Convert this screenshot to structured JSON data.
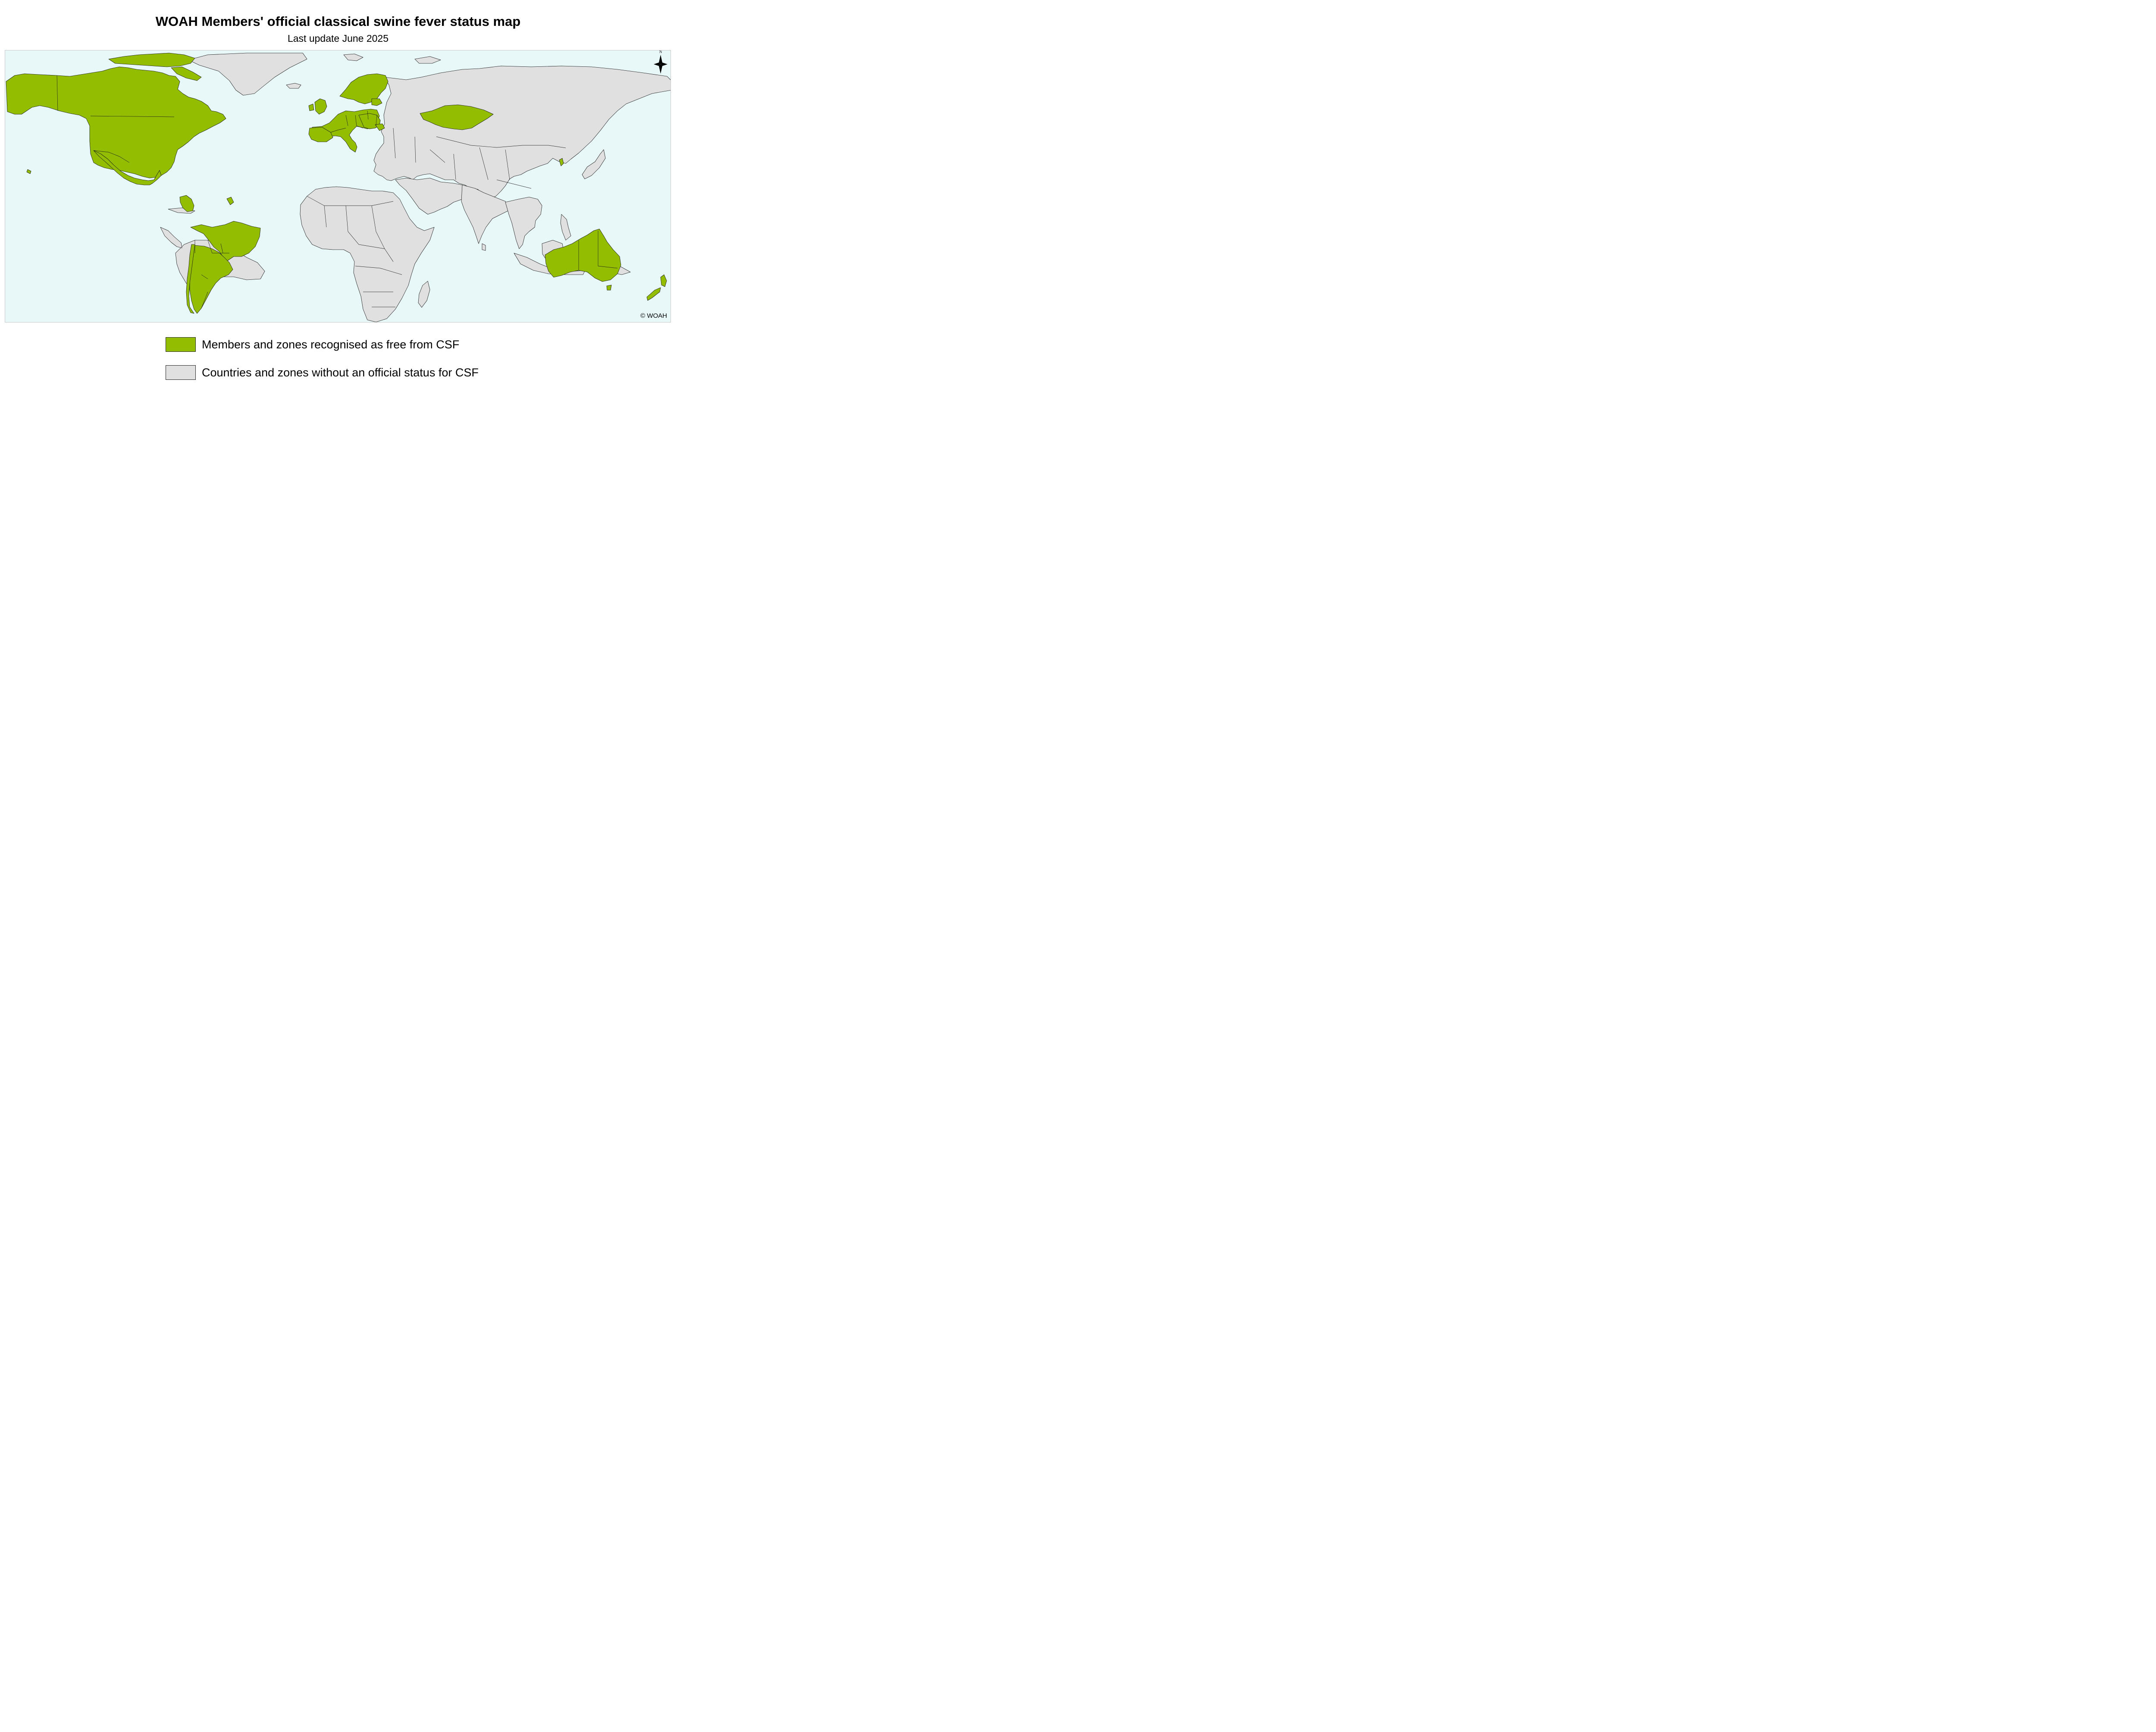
{
  "title": "WOAH Members' official classical swine fever status map",
  "subtitle": "Last update June 2025",
  "map": {
    "background_color": "#e8f8f9",
    "north_label": "N",
    "copyright": "© WOAH",
    "categories": [
      {
        "name": "free",
        "color": "#93bd00"
      },
      {
        "name": "no_status",
        "color": "#e0e0e0"
      }
    ],
    "free_members_and_zones": [
      "Canada",
      "United States of America",
      "Mexico",
      "Guatemala",
      "Chile",
      "Argentina",
      "Uruguay",
      "Paraguay",
      "Brazil (zone)",
      "Colombia (zone)",
      "French Guiana",
      "Ireland",
      "United Kingdom",
      "Spain",
      "Portugal",
      "France",
      "Belgium",
      "Netherlands",
      "Luxembourg",
      "Germany",
      "Switzerland",
      "Austria",
      "Italy",
      "Denmark",
      "Norway",
      "Sweden",
      "Finland",
      "Iceland",
      "Poland",
      "Czech Republic",
      "Slovakia",
      "Hungary",
      "Slovenia",
      "Croatia",
      "Estonia",
      "Latvia",
      "Lithuania",
      "Bulgaria",
      "Kazakhstan",
      "Chinese Taipei",
      "Australia",
      "New Zealand"
    ]
  },
  "legend": {
    "items": [
      {
        "label": "Members and zones recognised as free from CSF",
        "color": "#93bd00"
      },
      {
        "label": "Countries and zones without an official status for CSF",
        "color": "#e0e0e0"
      }
    ]
  }
}
